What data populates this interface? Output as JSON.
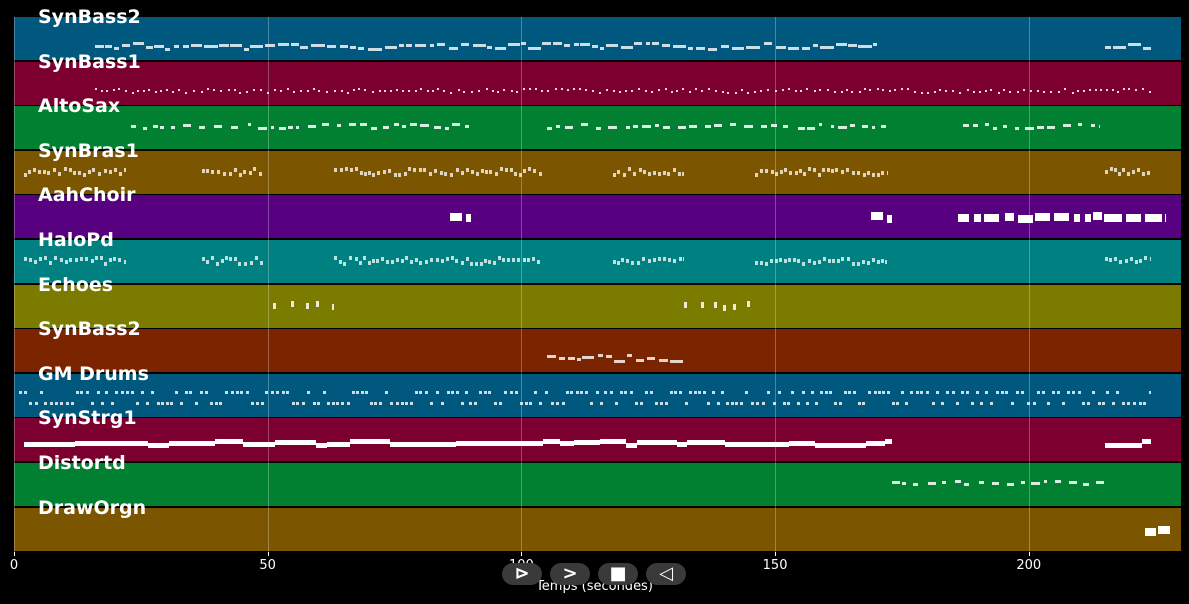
{
  "colors": {
    "background": "#000000",
    "lanes": [
      "#00587f",
      "#7b0030",
      "#008030",
      "#7b5500",
      "#570080",
      "#008080",
      "#7b7b00",
      "#7b2400",
      "#00587f",
      "#7b0030",
      "#008030",
      "#7b5500"
    ]
  },
  "chart_data": {
    "type": "piano-roll",
    "xlabel": "Temps (secondes)",
    "xlim": [
      0,
      230
    ],
    "xticks": [
      0,
      50,
      100,
      150,
      200
    ],
    "grid": true,
    "tracks": [
      {
        "name": "SynBass2",
        "style": "dashes",
        "segments": [
          [
            16,
            170
          ],
          [
            215,
            224
          ]
        ]
      },
      {
        "name": "SynBass1",
        "style": "dots",
        "segments": [
          [
            16,
            224
          ]
        ]
      },
      {
        "name": "AltoSax",
        "style": "dashes-sparse",
        "segments": [
          [
            23,
            90
          ],
          [
            105,
            172
          ],
          [
            187,
            214
          ]
        ]
      },
      {
        "name": "SynBras1",
        "style": "squiggle",
        "segments": [
          [
            2,
            22
          ],
          [
            37,
            49
          ],
          [
            63,
            104
          ],
          [
            118,
            132
          ],
          [
            146,
            172
          ],
          [
            215,
            224
          ]
        ]
      },
      {
        "name": "AahChoir",
        "style": "blocks",
        "segments": [
          [
            86,
            90
          ],
          [
            169,
            173
          ],
          [
            186,
            227
          ]
        ]
      },
      {
        "name": "HaloPd",
        "style": "squiggle",
        "segments": [
          [
            2,
            22
          ],
          [
            37,
            49
          ],
          [
            63,
            104
          ],
          [
            118,
            132
          ],
          [
            146,
            172
          ],
          [
            215,
            224
          ]
        ]
      },
      {
        "name": "Echoes",
        "style": "ticks",
        "segments": [
          [
            51,
            63
          ],
          [
            132,
            145
          ]
        ]
      },
      {
        "name": "SynBass2",
        "style": "dashes",
        "segments": [
          [
            105,
            132
          ]
        ]
      },
      {
        "name": "GM Drums",
        "style": "drums",
        "segments": [
          [
            1,
            224
          ]
        ]
      },
      {
        "name": "SynStrg1",
        "style": "thick",
        "segments": [
          [
            2,
            173
          ],
          [
            215,
            224
          ]
        ]
      },
      {
        "name": "Distortd",
        "style": "dashes-sparse",
        "segments": [
          [
            173,
            215
          ]
        ]
      },
      {
        "name": "DrawOrgn",
        "style": "blocks",
        "segments": [
          [
            223,
            228
          ]
        ]
      }
    ]
  },
  "controls": [
    {
      "name": "rewind-button",
      "glyph": "⊳"
    },
    {
      "name": "forward-button",
      "glyph": ">"
    },
    {
      "name": "stop-button",
      "glyph": "■"
    },
    {
      "name": "back-button",
      "glyph": "◁"
    }
  ]
}
